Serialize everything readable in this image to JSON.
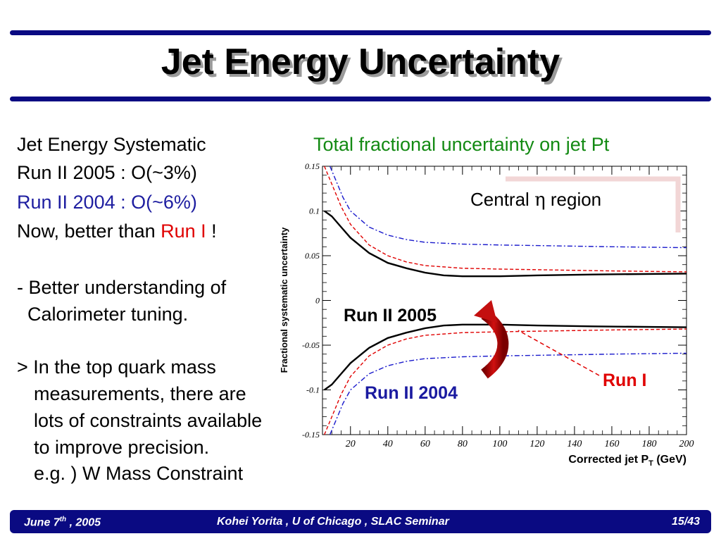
{
  "slide": {
    "title": "Jet Energy Uncertainty",
    "left_lines": [
      "Jet Energy Systematic",
      "Run II 2005 : O(~3%)",
      "Run II 2004 : O(~6%)",
      "Now, better than ",
      "Run I",
      " !",
      "- Better understanding of",
      "  Calorimeter tuning.",
      "> In the top quark mass",
      "measurements, there are",
      "lots of constraints available",
      "to improve precision.",
      "e.g. ) W Mass Constraint"
    ],
    "chart_heading": "Total fractional uncertainty on jet Pt",
    "footer": {
      "date_main": "June 7",
      "date_sup": "th",
      "date_tail": " , 2005",
      "center": "Kohei Yorita , U of Chicago , SLAC Seminar",
      "page": "15/43"
    }
  },
  "chart_data": {
    "type": "line",
    "xlabel_main": "Corrected jet P",
    "xlabel_sub": "T",
    "xlabel_tail": " (GeV)",
    "ylabel": "Fractional systematic uncertainty",
    "xlim": [
      5,
      200
    ],
    "ylim": [
      -0.15,
      0.15
    ],
    "x_ticks": [
      20,
      40,
      60,
      80,
      100,
      120,
      140,
      160,
      180,
      200
    ],
    "x_tick_labels": [
      "20",
      "40",
      "60",
      "80",
      "100",
      "120",
      "140",
      "160",
      "180",
      "200"
    ],
    "y_ticks": [
      0.15,
      0.1,
      0.05,
      0,
      -0.05,
      -0.1,
      -0.15
    ],
    "y_tick_labels": [
      "0.15",
      "0.1",
      "0.05",
      "0",
      "-0.05",
      "-0.1",
      "-0.15"
    ],
    "annotations": {
      "region": "Central",
      "region_symbol": "η",
      "region_tail": " region",
      "run2005": "Run II 2005",
      "run2004": "Run II 2004",
      "run1": "Run I"
    },
    "colors": {
      "run2005": "#000000",
      "run1": "#e00000",
      "run2004": "#1a1acc",
      "arrow": "#b80000"
    },
    "series": [
      {
        "key": "run2005",
        "style": "solid",
        "x": [
          6,
          10,
          15,
          20,
          30,
          40,
          50,
          60,
          70,
          80,
          100,
          120,
          150,
          200
        ],
        "y": [
          0.1,
          0.094,
          0.082,
          0.07,
          0.053,
          0.042,
          0.036,
          0.031,
          0.028,
          0.027,
          0.027,
          0.028,
          0.029,
          0.03
        ]
      },
      {
        "key": "run1",
        "style": "dashed",
        "x": [
          6,
          10,
          15,
          20,
          30,
          40,
          50,
          60,
          80,
          100,
          130,
          160,
          200
        ],
        "y": [
          0.15,
          0.13,
          0.105,
          0.085,
          0.062,
          0.05,
          0.043,
          0.039,
          0.036,
          0.035,
          0.034,
          0.033,
          0.032
        ]
      },
      {
        "key": "run2004",
        "style": "dashdot",
        "x": [
          9,
          12,
          16,
          20,
          30,
          40,
          50,
          60,
          80,
          100,
          130,
          160,
          200
        ],
        "y": [
          0.15,
          0.135,
          0.115,
          0.1,
          0.082,
          0.073,
          0.068,
          0.065,
          0.063,
          0.062,
          0.061,
          0.06,
          0.059
        ]
      }
    ]
  }
}
